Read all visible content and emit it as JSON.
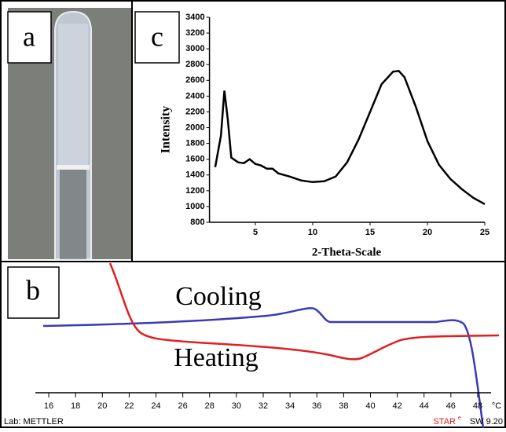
{
  "panel_labels": [
    "a",
    "c",
    "b"
  ],
  "chart_data": [
    {
      "type": "line",
      "x_label": "2-Theta-Scale",
      "y_label": "Intensity",
      "x": [
        1.5,
        2,
        2.3,
        2.6,
        2.9,
        3.5,
        4,
        4.5,
        5,
        5.5,
        6,
        6.5,
        7,
        8,
        9,
        10,
        11,
        12,
        13,
        14,
        15,
        16,
        17,
        17.5,
        18,
        19,
        20,
        21,
        22,
        23,
        24,
        25
      ],
      "series": [
        {
          "color": "#000000",
          "values": [
            1500,
            1900,
            2470,
            2100,
            1620,
            1560,
            1550,
            1600,
            1540,
            1520,
            1480,
            1480,
            1420,
            1380,
            1330,
            1310,
            1320,
            1380,
            1560,
            1850,
            2200,
            2550,
            2710,
            2720,
            2640,
            2260,
            1830,
            1530,
            1350,
            1220,
            1110,
            1030
          ]
        }
      ],
      "xlim": [
        1,
        25
      ],
      "xticks": [
        5,
        10,
        15,
        20,
        25
      ],
      "ylim": [
        800,
        3400
      ],
      "yticks": [
        800,
        1000,
        1200,
        1400,
        1600,
        1800,
        2000,
        2200,
        2400,
        2600,
        2800,
        3000,
        3200,
        3400
      ]
    },
    {
      "type": "line",
      "annotations": [
        "Cooling",
        "Heating"
      ],
      "xlim": [
        15,
        49
      ],
      "xticks": [
        16,
        18,
        20,
        22,
        24,
        26,
        28,
        30,
        32,
        34,
        36,
        38,
        40,
        42,
        44,
        46,
        48
      ],
      "x_unit": "°C",
      "footer_left": "Lab: METTLER",
      "footer_brand": "STAR",
      "footer_brand_sup": "e",
      "footer_right": "SW 9.20"
    }
  ]
}
